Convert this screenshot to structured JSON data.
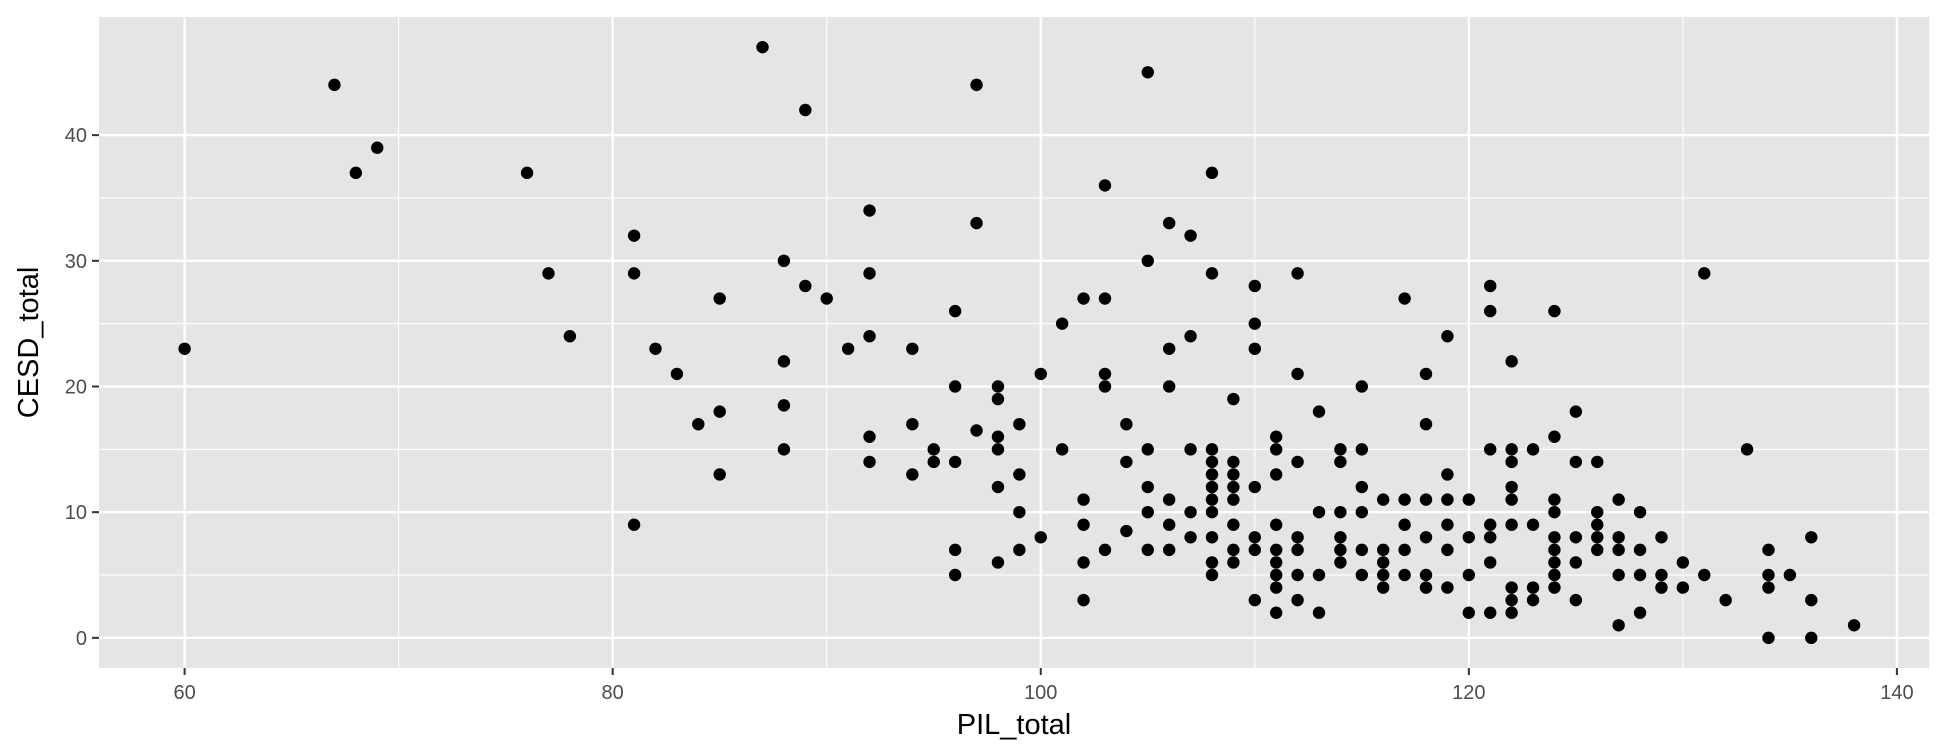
{
  "chart_data": {
    "type": "scatter",
    "title": "",
    "xlabel": "PIL_total",
    "ylabel": "CESD_total",
    "xlim": [
      56,
      141.5
    ],
    "ylim": [
      -2.4,
      49.4
    ],
    "x_ticks": [
      60,
      80,
      100,
      120,
      140
    ],
    "y_ticks": [
      0,
      10,
      20,
      30,
      40
    ],
    "x_tick_labels": [
      "60",
      "80",
      "100",
      "120",
      "140"
    ],
    "y_tick_labels": [
      "0",
      "10",
      "20",
      "30",
      "40"
    ],
    "grid": true,
    "legend": "none",
    "colors": {
      "panel": "#e5e5e5",
      "grid": "#ffffff",
      "point": "#000000",
      "tick_text": "#4d4d4d",
      "axis_title": "#000000"
    },
    "points": [
      [
        60,
        23
      ],
      [
        67,
        44
      ],
      [
        68,
        37
      ],
      [
        69,
        39
      ],
      [
        76,
        37
      ],
      [
        77,
        29
      ],
      [
        78,
        24
      ],
      [
        81,
        32
      ],
      [
        81,
        29
      ],
      [
        81,
        9
      ],
      [
        82,
        23
      ],
      [
        83,
        21
      ],
      [
        84,
        17
      ],
      [
        85,
        27
      ],
      [
        85,
        18
      ],
      [
        85,
        13
      ],
      [
        87,
        47
      ],
      [
        88,
        30
      ],
      [
        88,
        22
      ],
      [
        88,
        18.5
      ],
      [
        88,
        15
      ],
      [
        89,
        42
      ],
      [
        89,
        28
      ],
      [
        90,
        27
      ],
      [
        91,
        23
      ],
      [
        92,
        34
      ],
      [
        92,
        29
      ],
      [
        92,
        24
      ],
      [
        92,
        16
      ],
      [
        92,
        14
      ],
      [
        94,
        23
      ],
      [
        94,
        17
      ],
      [
        94,
        13
      ],
      [
        95,
        15
      ],
      [
        95,
        14
      ],
      [
        96,
        26
      ],
      [
        96,
        20
      ],
      [
        96,
        14
      ],
      [
        96,
        7
      ],
      [
        96,
        5
      ],
      [
        97,
        44
      ],
      [
        97,
        33
      ],
      [
        97,
        16.5
      ],
      [
        98,
        20
      ],
      [
        98,
        19
      ],
      [
        98,
        16
      ],
      [
        98,
        15
      ],
      [
        98,
        12
      ],
      [
        98,
        6
      ],
      [
        99,
        17
      ],
      [
        99,
        13
      ],
      [
        99,
        10
      ],
      [
        99,
        7
      ],
      [
        100,
        21
      ],
      [
        100,
        8
      ],
      [
        101,
        25
      ],
      [
        101,
        15
      ],
      [
        102,
        27
      ],
      [
        102,
        11
      ],
      [
        102,
        9
      ],
      [
        102,
        6
      ],
      [
        102,
        3
      ],
      [
        103,
        36
      ],
      [
        103,
        27
      ],
      [
        103,
        21
      ],
      [
        103,
        20
      ],
      [
        103,
        7
      ],
      [
        104,
        17
      ],
      [
        104,
        14
      ],
      [
        104,
        8.5
      ],
      [
        105,
        45
      ],
      [
        105,
        30
      ],
      [
        105,
        15
      ],
      [
        105,
        12
      ],
      [
        105,
        10
      ],
      [
        105,
        7
      ],
      [
        106,
        33
      ],
      [
        106,
        23
      ],
      [
        106,
        20
      ],
      [
        106,
        11
      ],
      [
        106,
        9
      ],
      [
        106,
        7
      ],
      [
        107,
        32
      ],
      [
        107,
        24
      ],
      [
        107,
        15
      ],
      [
        107,
        10
      ],
      [
        107,
        8
      ],
      [
        108,
        37
      ],
      [
        108,
        29
      ],
      [
        108,
        15
      ],
      [
        108,
        14
      ],
      [
        108,
        13
      ],
      [
        108,
        12
      ],
      [
        108,
        11
      ],
      [
        108,
        10
      ],
      [
        108,
        8
      ],
      [
        108,
        6
      ],
      [
        108,
        5
      ],
      [
        109,
        19
      ],
      [
        109,
        14
      ],
      [
        109,
        13
      ],
      [
        109,
        12
      ],
      [
        109,
        11
      ],
      [
        109,
        9
      ],
      [
        109,
        7
      ],
      [
        109,
        6
      ],
      [
        110,
        28
      ],
      [
        110,
        25
      ],
      [
        110,
        23
      ],
      [
        110,
        12
      ],
      [
        110,
        8
      ],
      [
        110,
        7
      ],
      [
        110,
        3
      ],
      [
        111,
        16
      ],
      [
        111,
        15
      ],
      [
        111,
        13
      ],
      [
        111,
        9
      ],
      [
        111,
        7
      ],
      [
        111,
        6
      ],
      [
        111,
        5
      ],
      [
        111,
        4
      ],
      [
        111,
        2
      ],
      [
        112,
        29
      ],
      [
        112,
        21
      ],
      [
        112,
        14
      ],
      [
        112,
        8
      ],
      [
        112,
        7
      ],
      [
        112,
        5
      ],
      [
        112,
        3
      ],
      [
        113,
        18
      ],
      [
        113,
        10
      ],
      [
        113,
        5
      ],
      [
        113,
        2
      ],
      [
        114,
        15
      ],
      [
        114,
        14
      ],
      [
        114,
        10
      ],
      [
        114,
        8
      ],
      [
        114,
        7
      ],
      [
        114,
        6
      ],
      [
        115,
        20
      ],
      [
        115,
        15
      ],
      [
        115,
        12
      ],
      [
        115,
        10
      ],
      [
        115,
        7
      ],
      [
        115,
        5
      ],
      [
        116,
        11
      ],
      [
        116,
        7
      ],
      [
        116,
        6
      ],
      [
        116,
        5
      ],
      [
        116,
        4
      ],
      [
        117,
        27
      ],
      [
        117,
        11
      ],
      [
        117,
        9
      ],
      [
        117,
        7
      ],
      [
        117,
        5
      ],
      [
        118,
        21
      ],
      [
        118,
        17
      ],
      [
        118,
        11
      ],
      [
        118,
        8
      ],
      [
        118,
        5
      ],
      [
        118,
        4
      ],
      [
        119,
        24
      ],
      [
        119,
        13
      ],
      [
        119,
        11
      ],
      [
        119,
        9
      ],
      [
        119,
        7
      ],
      [
        119,
        4
      ],
      [
        120,
        11
      ],
      [
        120,
        8
      ],
      [
        120,
        5
      ],
      [
        120,
        2
      ],
      [
        121,
        28
      ],
      [
        121,
        26
      ],
      [
        121,
        15
      ],
      [
        121,
        9
      ],
      [
        121,
        8
      ],
      [
        121,
        6
      ],
      [
        121,
        2
      ],
      [
        122,
        22
      ],
      [
        122,
        15
      ],
      [
        122,
        14
      ],
      [
        122,
        12
      ],
      [
        122,
        11
      ],
      [
        122,
        9
      ],
      [
        122,
        4
      ],
      [
        122,
        3
      ],
      [
        122,
        2
      ],
      [
        123,
        15
      ],
      [
        123,
        9
      ],
      [
        123,
        4
      ],
      [
        123,
        3
      ],
      [
        124,
        26
      ],
      [
        124,
        16
      ],
      [
        124,
        11
      ],
      [
        124,
        10
      ],
      [
        124,
        8
      ],
      [
        124,
        7
      ],
      [
        124,
        6
      ],
      [
        124,
        5
      ],
      [
        124,
        4
      ],
      [
        125,
        18
      ],
      [
        125,
        14
      ],
      [
        125,
        8
      ],
      [
        125,
        6
      ],
      [
        125,
        3
      ],
      [
        126,
        14
      ],
      [
        126,
        10
      ],
      [
        126,
        9
      ],
      [
        126,
        8
      ],
      [
        126,
        7
      ],
      [
        127,
        11
      ],
      [
        127,
        8
      ],
      [
        127,
        7
      ],
      [
        127,
        5
      ],
      [
        127,
        1
      ],
      [
        128,
        10
      ],
      [
        128,
        7
      ],
      [
        128,
        5
      ],
      [
        128,
        2
      ],
      [
        129,
        8
      ],
      [
        129,
        5
      ],
      [
        129,
        4
      ],
      [
        130,
        6
      ],
      [
        130,
        4
      ],
      [
        131,
        29
      ],
      [
        131,
        5
      ],
      [
        132,
        3
      ],
      [
        133,
        15
      ],
      [
        134,
        7
      ],
      [
        134,
        5
      ],
      [
        134,
        4
      ],
      [
        134,
        0
      ],
      [
        135,
        5
      ],
      [
        136,
        8
      ],
      [
        136,
        3
      ],
      [
        136,
        0
      ],
      [
        138,
        1
      ]
    ]
  }
}
